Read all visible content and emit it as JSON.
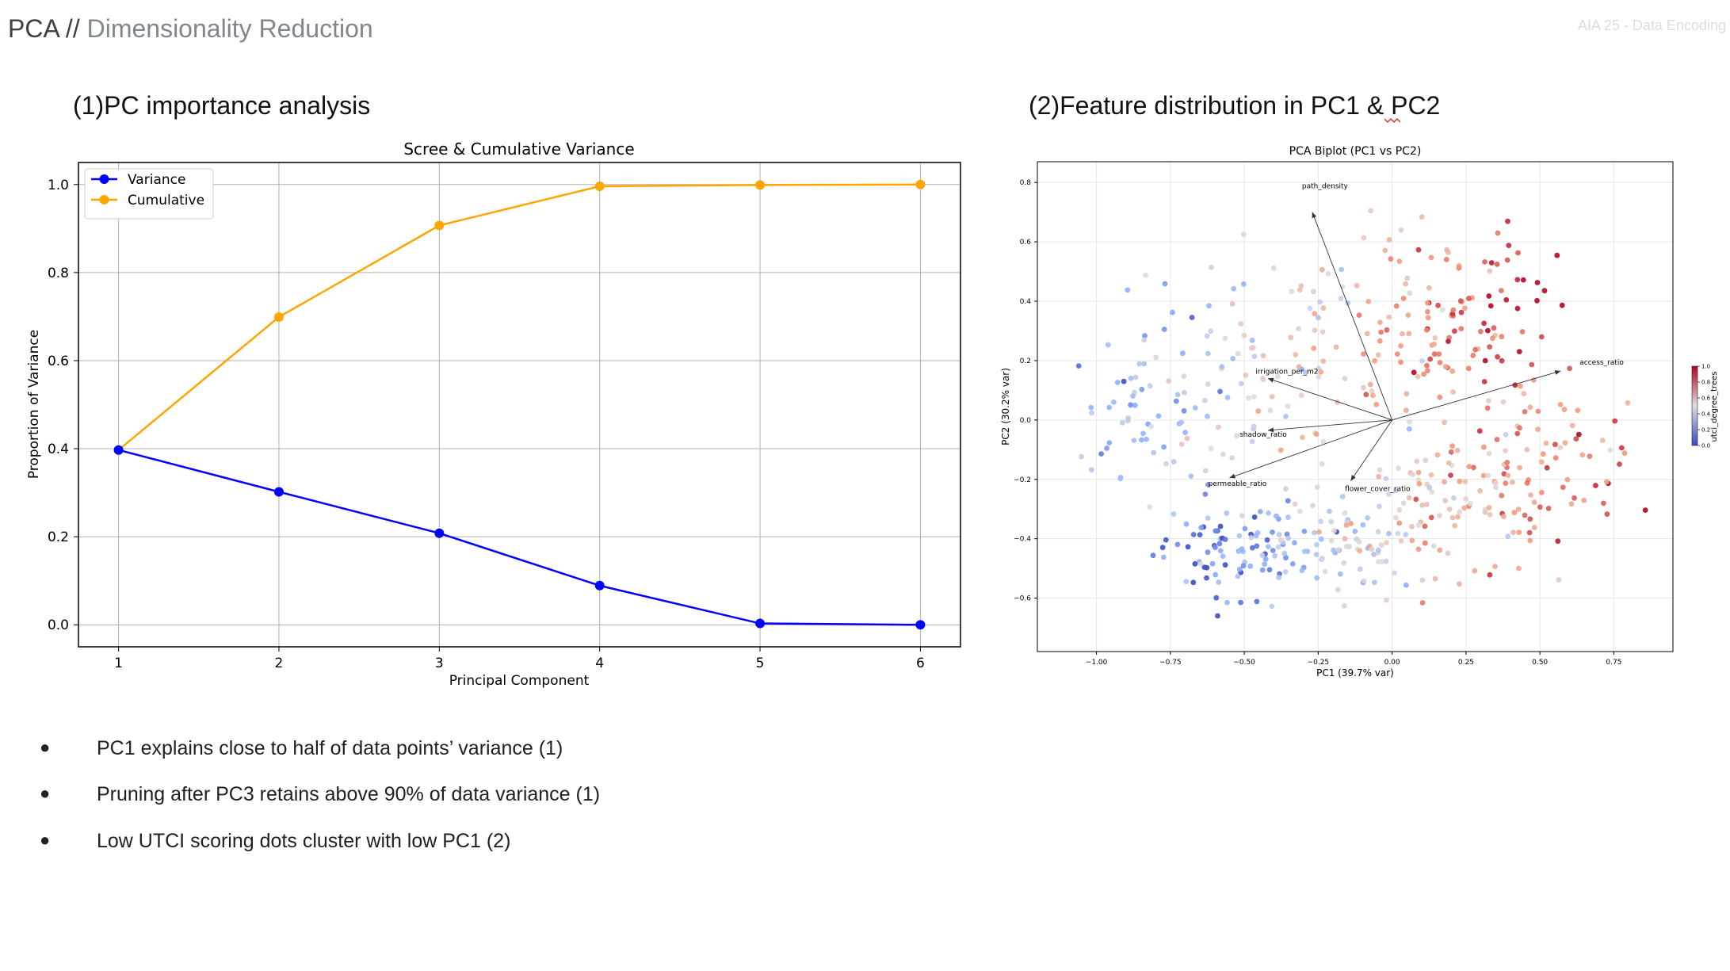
{
  "header": {
    "title_main": "PCA //",
    "title_sub": " Dimensionality Reduction",
    "tag": "AIA 25 - Data Encoding"
  },
  "sections": {
    "left_title": "(1)PC importance analysis",
    "right_title": "(2)Feature distribution in PC1 & PC2"
  },
  "bullets": [
    "PC1 explains close to half of data points’ variance (1)",
    "Pruning after PC3 retains above 90% of data variance (1)",
    "Low UTCI scoring dots cluster with low PC1 (2)"
  ],
  "colors": {
    "variance": "#0000ff",
    "cumulative": "#ffa500"
  },
  "chart_data": [
    {
      "type": "line",
      "title": "Scree & Cumulative Variance",
      "xlabel": "Principal Component",
      "ylabel": "Proportion of Variance",
      "x": [
        1,
        2,
        3,
        4,
        5,
        6
      ],
      "xticks": [
        "1",
        "2",
        "3",
        "4",
        "5",
        "6"
      ],
      "yticks": [
        "0.0",
        "0.2",
        "0.4",
        "0.6",
        "0.8",
        "1.0"
      ],
      "xlim": [
        0.75,
        6.25
      ],
      "ylim": [
        -0.05,
        1.05
      ],
      "grid": true,
      "legend": "top-left",
      "series": [
        {
          "name": "Variance",
          "values": [
            0.397,
            0.302,
            0.208,
            0.089,
            0.003,
            0.0
          ]
        },
        {
          "name": "Cumulative",
          "values": [
            0.397,
            0.699,
            0.907,
            0.996,
            0.999,
            1.0
          ]
        }
      ]
    },
    {
      "type": "scatter",
      "title": "PCA Biplot (PC1 vs PC2)",
      "xlabel": "PC1 (39.7% var)",
      "ylabel": "PC2 (30.2% var)",
      "xlim": [
        -1.2,
        0.95
      ],
      "ylim": [
        -0.78,
        0.87
      ],
      "xticks": [
        "-1.00",
        "-0.75",
        "-0.50",
        "-0.25",
        "0.00",
        "0.25",
        "0.50",
        "0.75"
      ],
      "yticks": [
        "-0.6",
        "-0.4",
        "-0.2",
        "0.0",
        "0.2",
        "0.4",
        "0.6",
        "0.8"
      ],
      "grid": true,
      "colorbar": {
        "label": "utci_degree_trees",
        "ticks": [
          "0.0",
          "0.2",
          "0.4",
          "0.6",
          "0.8",
          "1.0"
        ]
      },
      "loadings": [
        {
          "name": "path_density",
          "x": -0.27,
          "y": 0.7
        },
        {
          "name": "access_ratio",
          "x": 0.57,
          "y": 0.165
        },
        {
          "name": "irrigation_per_m2",
          "x": -0.42,
          "y": 0.14
        },
        {
          "name": "shadow_ratio",
          "x": -0.42,
          "y": -0.035
        },
        {
          "name": "permeable_ratio",
          "x": -0.55,
          "y": -0.195
        },
        {
          "name": "flower_cover_ratio",
          "x": -0.14,
          "y": -0.205
        }
      ],
      "points_note": "",
      "clusters": [
        {
          "cx": -0.55,
          "cy": -0.45,
          "sx": 0.13,
          "sy": 0.08,
          "v": 0.15,
          "n": 70
        },
        {
          "cx": -0.2,
          "cy": -0.42,
          "sx": 0.2,
          "sy": 0.09,
          "v": 0.4,
          "n": 90
        },
        {
          "cx": 0.2,
          "cy": -0.3,
          "sx": 0.25,
          "sy": 0.12,
          "v": 0.65,
          "n": 110
        },
        {
          "cx": 0.55,
          "cy": -0.12,
          "sx": 0.16,
          "sy": 0.12,
          "v": 0.75,
          "n": 60
        },
        {
          "cx": 0.1,
          "cy": 0.3,
          "sx": 0.2,
          "sy": 0.18,
          "v": 0.7,
          "n": 100
        },
        {
          "cx": 0.3,
          "cy": 0.4,
          "sx": 0.16,
          "sy": 0.15,
          "v": 0.9,
          "n": 45
        },
        {
          "cx": -0.45,
          "cy": 0.2,
          "sx": 0.2,
          "sy": 0.18,
          "v": 0.45,
          "n": 90
        },
        {
          "cx": -0.85,
          "cy": 0.02,
          "sx": 0.13,
          "sy": 0.15,
          "v": 0.3,
          "n": 55
        }
      ]
    }
  ]
}
